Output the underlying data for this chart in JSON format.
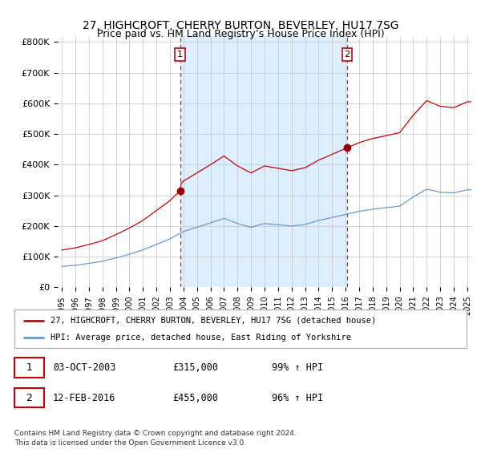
{
  "title": "27, HIGHCROFT, CHERRY BURTON, BEVERLEY, HU17 7SG",
  "subtitle": "Price paid vs. HM Land Registry’s House Price Index (HPI)",
  "ylabel_ticks": [
    "£0",
    "£100K",
    "£200K",
    "£300K",
    "£400K",
    "£500K",
    "£600K",
    "£700K",
    "£800K"
  ],
  "ytick_values": [
    0,
    100000,
    200000,
    300000,
    400000,
    500000,
    600000,
    700000,
    800000
  ],
  "ylim": [
    0,
    820000
  ],
  "xlim_start": 1994.7,
  "xlim_end": 2025.3,
  "sale1_x": 2003.75,
  "sale1_y": 315000,
  "sale2_x": 2016.1,
  "sale2_y": 455000,
  "vline1_x": 2003.75,
  "vline2_x": 2016.1,
  "red_line_color": "#cc0000",
  "blue_line_color": "#6699cc",
  "shade_color": "#ddeeff",
  "vline_color": "#cc0000",
  "legend1_text": "27, HIGHCROFT, CHERRY BURTON, BEVERLEY, HU17 7SG (detached house)",
  "legend2_text": "HPI: Average price, detached house, East Riding of Yorkshire",
  "footnote": "Contains HM Land Registry data © Crown copyright and database right 2024.\nThis data is licensed under the Open Government Licence v3.0.",
  "background_color": "#ffffff",
  "plot_bg_color": "#ffffff",
  "grid_color": "#cccccc",
  "title_fontsize": 10,
  "subtitle_fontsize": 9
}
